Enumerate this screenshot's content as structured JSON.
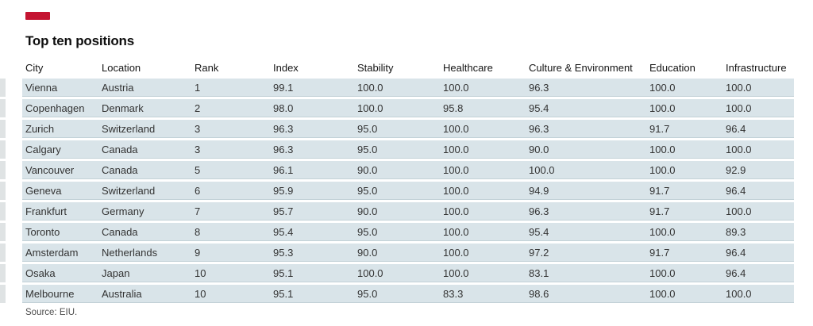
{
  "figure": {
    "title": "Top ten positions",
    "source": "Source: EIU.",
    "accent_color": "#c41431",
    "row_color": "#d9e4e9"
  },
  "chart_data": {
    "type": "table",
    "title": "Top ten positions",
    "columns": [
      "City",
      "Location",
      "Rank",
      "Index",
      "Stability",
      "Healthcare",
      "Culture & Environment",
      "Education",
      "Infrastructure"
    ],
    "rows": [
      [
        "Vienna",
        "Austria",
        "1",
        "99.1",
        "100.0",
        "100.0",
        "96.3",
        "100.0",
        "100.0"
      ],
      [
        "Copenhagen",
        "Denmark",
        "2",
        "98.0",
        "100.0",
        "95.8",
        "95.4",
        "100.0",
        "100.0"
      ],
      [
        "Zurich",
        "Switzerland",
        "3",
        "96.3",
        "95.0",
        "100.0",
        "96.3",
        "91.7",
        "96.4"
      ],
      [
        "Calgary",
        "Canada",
        "3",
        "96.3",
        "95.0",
        "100.0",
        "90.0",
        "100.0",
        "100.0"
      ],
      [
        "Vancouver",
        "Canada",
        "5",
        "96.1",
        "90.0",
        "100.0",
        "100.0",
        "100.0",
        "92.9"
      ],
      [
        "Geneva",
        "Switzerland",
        "6",
        "95.9",
        "95.0",
        "100.0",
        "94.9",
        "91.7",
        "96.4"
      ],
      [
        "Frankfurt",
        "Germany",
        "7",
        "95.7",
        "90.0",
        "100.0",
        "96.3",
        "91.7",
        "100.0"
      ],
      [
        "Toronto",
        "Canada",
        "8",
        "95.4",
        "95.0",
        "100.0",
        "95.4",
        "100.0",
        "89.3"
      ],
      [
        "Amsterdam",
        "Netherlands",
        "9",
        "95.3",
        "90.0",
        "100.0",
        "97.2",
        "91.7",
        "96.4"
      ],
      [
        "Osaka",
        "Japan",
        "10",
        "95.1",
        "100.0",
        "100.0",
        "83.1",
        "100.0",
        "96.4"
      ],
      [
        "Melbourne",
        "Australia",
        "10",
        "95.1",
        "95.0",
        "83.3",
        "98.6",
        "100.0",
        "100.0"
      ]
    ]
  }
}
